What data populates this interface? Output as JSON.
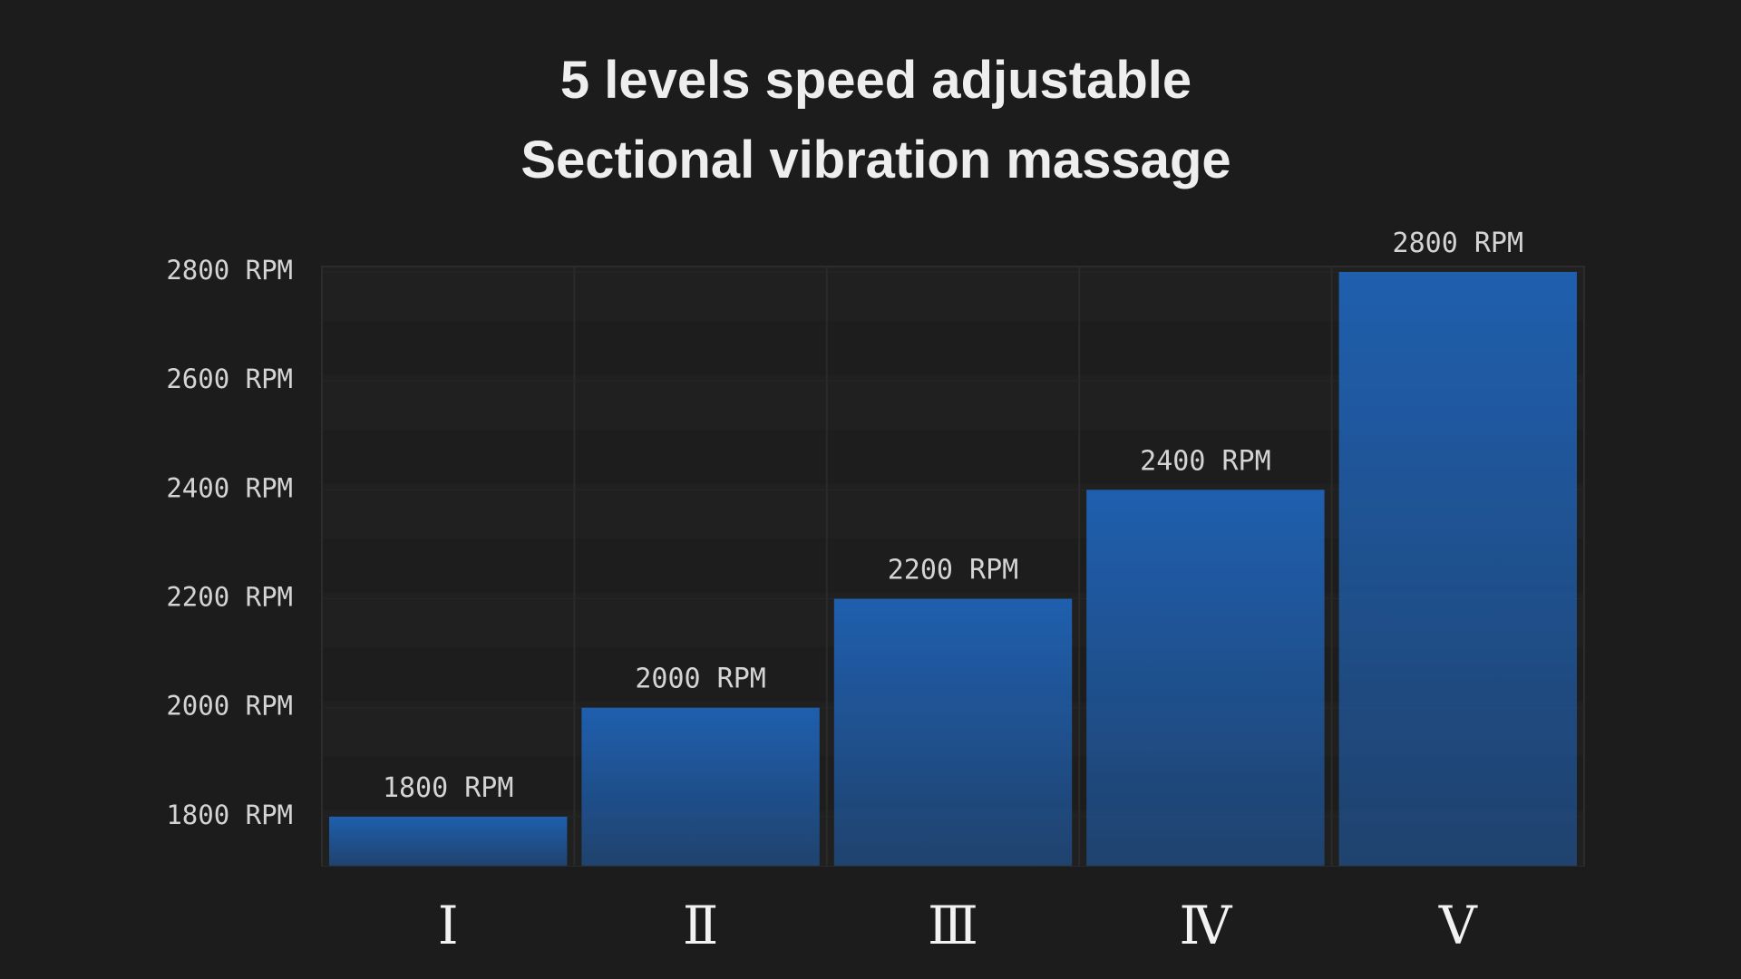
{
  "chart_data": {
    "type": "bar",
    "title": "5 levels speed adjustable",
    "subtitle": "Sectional vibration massage",
    "categories": [
      "Ⅰ",
      "Ⅱ",
      "Ⅲ",
      "Ⅳ",
      "Ⅴ"
    ],
    "values": [
      1800,
      2000,
      2200,
      2400,
      2800
    ],
    "value_labels": [
      "1800 RPM",
      "2000 RPM",
      "2200 RPM",
      "2400 RPM",
      "2800 RPM"
    ],
    "color": "#1f5fae",
    "ylim": [
      1710,
      2810
    ],
    "yticks": [
      {
        "value": 1800,
        "label": "1800 RPM"
      },
      {
        "value": 2000,
        "label": "2000 RPM"
      },
      {
        "value": 2200,
        "label": "2200 RPM"
      },
      {
        "value": 2400,
        "label": "2400 RPM"
      },
      {
        "value": 2600,
        "label": "2600 RPM"
      },
      {
        "value": 2800,
        "label": "2800 RPM"
      }
    ],
    "grid": true
  }
}
